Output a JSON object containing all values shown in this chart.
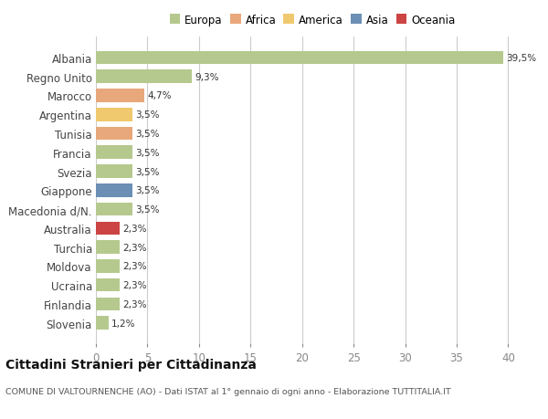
{
  "categories": [
    "Albania",
    "Regno Unito",
    "Marocco",
    "Argentina",
    "Tunisia",
    "Francia",
    "Svezia",
    "Giappone",
    "Macedonia d/N.",
    "Australia",
    "Turchia",
    "Moldova",
    "Ucraina",
    "Finlandia",
    "Slovenia"
  ],
  "values": [
    39.5,
    9.3,
    4.7,
    3.5,
    3.5,
    3.5,
    3.5,
    3.5,
    3.5,
    2.3,
    2.3,
    2.3,
    2.3,
    2.3,
    1.2
  ],
  "labels": [
    "39,5%",
    "9,3%",
    "4,7%",
    "3,5%",
    "3,5%",
    "3,5%",
    "3,5%",
    "3,5%",
    "3,5%",
    "2,3%",
    "2,3%",
    "2,3%",
    "2,3%",
    "2,3%",
    "1,2%"
  ],
  "colors": [
    "#b5c98e",
    "#b5c98e",
    "#e8a87c",
    "#f0c96e",
    "#e8a87c",
    "#b5c98e",
    "#b5c98e",
    "#6b8fb5",
    "#b5c98e",
    "#cc4444",
    "#b5c98e",
    "#b5c98e",
    "#b5c98e",
    "#b5c98e",
    "#b5c98e"
  ],
  "continent_labels": [
    "Europa",
    "Africa",
    "America",
    "Asia",
    "Oceania"
  ],
  "continent_colors": [
    "#b5c98e",
    "#e8a87c",
    "#f0c96e",
    "#6b8fb5",
    "#cc4444"
  ],
  "title": "Cittadini Stranieri per Cittadinanza",
  "subtitle": "COMUNE DI VALTOURNENCHE (AO) - Dati ISTAT al 1° gennaio di ogni anno - Elaborazione TUTTITALIA.IT",
  "xlim": [
    0,
    42
  ],
  "xticks": [
    0,
    5,
    10,
    15,
    20,
    25,
    30,
    35,
    40
  ],
  "background_color": "#ffffff",
  "grid_color": "#cccccc",
  "bar_height": 0.7
}
